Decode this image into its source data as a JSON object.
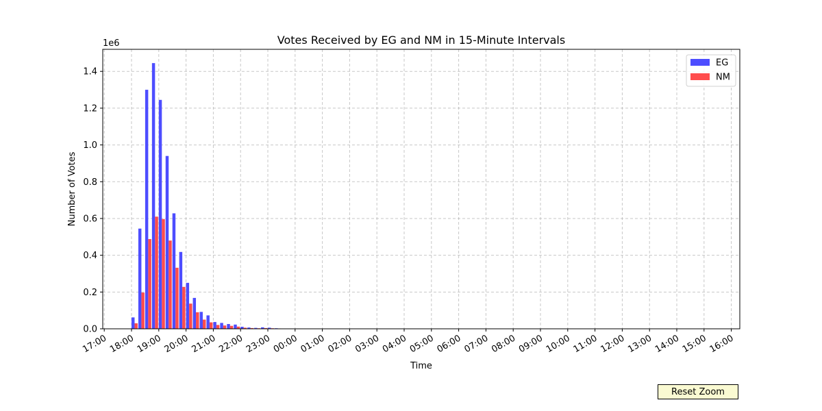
{
  "chart_data": {
    "type": "bar",
    "title": "Votes Received by EG and NM in 15-Minute Intervals",
    "xlabel": "Time",
    "ylabel": "Number of Votes",
    "y_offset_label": "1e6",
    "ylim": [
      0,
      1520000
    ],
    "y_ticks": [
      0,
      200000,
      400000,
      600000,
      800000,
      1000000,
      1200000,
      1400000
    ],
    "y_tick_labels": [
      "0.0",
      "0.2",
      "0.4",
      "0.6",
      "0.8",
      "1.0",
      "1.2",
      "1.4"
    ],
    "x_tick_labels": [
      "17:00",
      "18:00",
      "19:00",
      "20:00",
      "21:00",
      "22:00",
      "23:00",
      "00:00",
      "01:00",
      "02:00",
      "03:00",
      "04:00",
      "05:00",
      "06:00",
      "07:00",
      "08:00",
      "09:00",
      "10:00",
      "11:00",
      "12:00",
      "13:00",
      "14:00",
      "15:00",
      "16:00"
    ],
    "interval_minutes": 15,
    "categories": [
      "18:00",
      "18:15",
      "18:30",
      "18:45",
      "19:00",
      "19:15",
      "19:30",
      "19:45",
      "20:00",
      "20:15",
      "20:30",
      "20:45",
      "21:00",
      "21:15",
      "21:30",
      "21:45",
      "22:00",
      "22:15",
      "22:30",
      "22:45",
      "23:00",
      "23:15"
    ],
    "series": [
      {
        "name": "EG",
        "color": "#4d4dff",
        "values": [
          62000,
          545000,
          1300000,
          1445000,
          1245000,
          940000,
          628000,
          418000,
          250000,
          168000,
          92000,
          73000,
          37000,
          32000,
          26000,
          23000,
          11000,
          7000,
          5000,
          8000,
          6000,
          3000
        ]
      },
      {
        "name": "NM",
        "color": "#ff4d4d",
        "values": [
          30000,
          197000,
          488000,
          610000,
          597000,
          480000,
          332000,
          228000,
          137000,
          90000,
          50000,
          35000,
          21000,
          18000,
          16000,
          12000,
          6000,
          4000,
          3000,
          4000,
          3000,
          2000
        ]
      }
    ],
    "legend_position": "top-right",
    "grid": true,
    "grid_style": "dashed"
  },
  "controls": {
    "reset_zoom_label": "Reset Zoom"
  }
}
